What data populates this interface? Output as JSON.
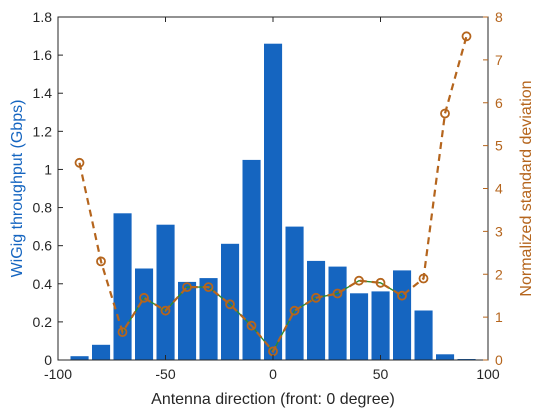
{
  "chart_data": {
    "type": "bar",
    "xlabel": "Antenna direction (front: 0 degree)",
    "ylabel_left": "WiGig throughput (Gbps)",
    "ylabel_right": "Normalized standard deviation",
    "xlim": [
      -100,
      100
    ],
    "ylim_left": [
      0,
      1.8
    ],
    "ylim_right": [
      0,
      8
    ],
    "x_ticks": [
      "-100",
      "-50",
      "0",
      "50",
      "100"
    ],
    "x_tick_values": [
      -100,
      -50,
      0,
      50,
      100
    ],
    "y_left_ticks": [
      "0",
      "0.2",
      "0.4",
      "0.6",
      "0.8",
      "1",
      "1.2",
      "1.4",
      "1.6",
      "1.8"
    ],
    "y_left_tick_values": [
      0,
      0.2,
      0.4,
      0.6,
      0.8,
      1.0,
      1.2,
      1.4,
      1.6,
      1.8
    ],
    "y_right_ticks": [
      "0",
      "1",
      "2",
      "3",
      "4",
      "5",
      "6",
      "7",
      "8"
    ],
    "y_right_tick_values": [
      0,
      1,
      2,
      3,
      4,
      5,
      6,
      7,
      8
    ],
    "grid": false,
    "bar_series": {
      "axis": "left",
      "color": "#1565c0",
      "x": [
        -90,
        -80,
        -70,
        -60,
        -50,
        -40,
        -30,
        -20,
        -10,
        0,
        10,
        20,
        30,
        40,
        50,
        60,
        70,
        80,
        90
      ],
      "values": [
        0.02,
        0.08,
        0.77,
        0.48,
        0.71,
        0.41,
        0.43,
        0.61,
        1.05,
        1.66,
        0.7,
        0.52,
        0.49,
        0.35,
        0.36,
        0.47,
        0.26,
        0.03,
        0.005
      ]
    },
    "line_series": {
      "axis": "right",
      "color": "#b5651d",
      "x": [
        -90,
        -80,
        -70,
        -60,
        -50,
        -40,
        -30,
        -20,
        -10,
        0,
        10,
        20,
        30,
        40,
        50,
        60,
        70,
        80,
        90
      ],
      "values": [
        4.6,
        2.3,
        0.65,
        1.45,
        1.15,
        1.7,
        1.7,
        1.3,
        0.8,
        0.2,
        1.15,
        1.45,
        1.55,
        1.85,
        1.8,
        1.5,
        1.9,
        5.75,
        7.55
      ]
    },
    "inner_line": {
      "color": "#2e8b2e",
      "x_range": [
        -70,
        60
      ]
    }
  }
}
